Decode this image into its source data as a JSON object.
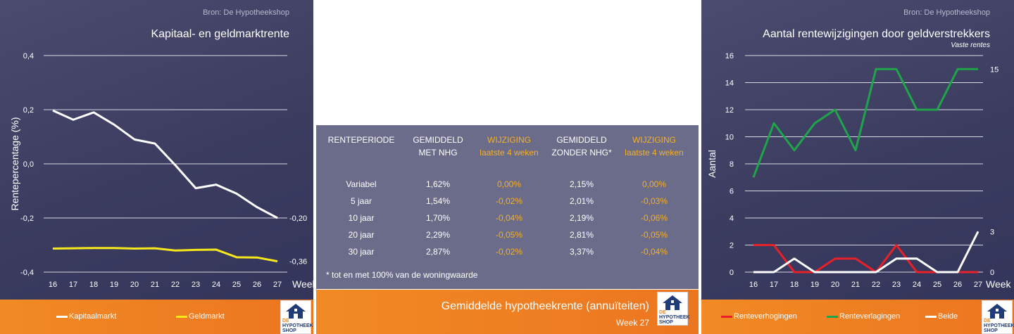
{
  "left_panel": {
    "source": "Bron: De Hypotheekshop",
    "legend": [
      {
        "label": "Kapitaalmarkt",
        "color": "#ffffff"
      },
      {
        "label": "Geldmarkt",
        "color": "#f7e81c"
      }
    ],
    "end_labels": [
      "-0,20",
      "-0,36"
    ]
  },
  "middle_panel": {
    "headers": [
      {
        "line1": "RENTEPERIODE",
        "line2": "",
        "accent": false
      },
      {
        "line1": "GEMIDDELD",
        "line2": "MET NHG",
        "accent": false
      },
      {
        "line1": "WIJZIGING",
        "line2": "laatste 4 weken",
        "accent": true
      },
      {
        "line1": "GEMIDDELD",
        "line2": "ZONDER NHG*",
        "accent": false
      },
      {
        "line1": "WIJZIGING",
        "line2": "laatste 4 weken",
        "accent": true
      }
    ],
    "rows": [
      [
        "Variabel",
        "1,62%",
        "0,00%",
        "2,15%",
        "0,00%"
      ],
      [
        "5 jaar",
        "1,54%",
        "-0,02%",
        "2,01%",
        "-0,03%"
      ],
      [
        "10 jaar",
        "1,70%",
        "-0,04%",
        "2,19%",
        "-0,06%"
      ],
      [
        "20 jaar",
        "2,29%",
        "-0,05%",
        "2,81%",
        "-0,05%"
      ],
      [
        "30 jaar",
        "2,87%",
        "-0,02%",
        "3,37%",
        "-0,04%"
      ]
    ],
    "note": "* tot en met 100% van de woningwaarde",
    "footer_title": "Gemiddelde hypotheekrente (annuïteiten)",
    "footer_week": "Week 27",
    "accent_color": "#f6b022"
  },
  "right_panel": {
    "source": "Bron: De Hypotheekshop",
    "subtitle": "Vaste rentes",
    "legend": [
      {
        "label": "Renteverhogingen",
        "color": "#e8202a"
      },
      {
        "label": "Renteverlagingen",
        "color": "#20a44a"
      },
      {
        "label": "Beide",
        "color": "#ffffff"
      }
    ]
  },
  "logo": {
    "line1": "DE",
    "line2": "HYPOTHEEK",
    "line3": "SHOP"
  },
  "chart_data": [
    {
      "type": "line",
      "title": "Kapitaal- en geldmarktrente",
      "xlabel": "Week",
      "ylabel": "Rentepercentage (%)",
      "x": [
        16,
        17,
        18,
        19,
        20,
        21,
        22,
        23,
        24,
        25,
        26,
        27
      ],
      "ylim": [
        -0.4,
        0.4
      ],
      "yticks": [
        "0,4",
        "0,2",
        "0,0",
        "-0,2",
        "-0,4"
      ],
      "ytick_values": [
        0.4,
        0.2,
        0.0,
        -0.2,
        -0.4
      ],
      "grid": true,
      "series": [
        {
          "name": "Kapitaalmarkt",
          "color": "#ffffff",
          "values": [
            0.197,
            0.163,
            0.19,
            0.145,
            0.09,
            0.075,
            -0.005,
            -0.09,
            -0.077,
            -0.11,
            -0.16,
            -0.2
          ]
        },
        {
          "name": "Geldmarkt",
          "color": "#f7e81c",
          "values": [
            -0.313,
            -0.312,
            -0.311,
            -0.311,
            -0.313,
            -0.312,
            -0.32,
            -0.318,
            -0.317,
            -0.345,
            -0.346,
            -0.36
          ]
        }
      ]
    },
    {
      "type": "line",
      "title": "Aantal rentewijzigingen door geldverstrekkers",
      "subtitle": "Vaste rentes",
      "xlabel": "Week",
      "ylabel": "Aantal",
      "x": [
        16,
        17,
        18,
        19,
        20,
        21,
        22,
        23,
        24,
        25,
        26,
        27
      ],
      "ylim": [
        0,
        16
      ],
      "yticks": [
        "16",
        "14",
        "12",
        "10",
        "8",
        "6",
        "4",
        "2",
        "0"
      ],
      "ytick_values": [
        16,
        14,
        12,
        10,
        8,
        6,
        4,
        2,
        0
      ],
      "y2ticks": [
        "15",
        "3",
        "0"
      ],
      "y2tick_values": [
        15,
        3,
        0
      ],
      "grid": true,
      "series": [
        {
          "name": "Renteverhogingen",
          "color": "#e8202a",
          "values": [
            2,
            2,
            0,
            0,
            1,
            1,
            0,
            2,
            0,
            0,
            0,
            0
          ]
        },
        {
          "name": "Renteverlagingen",
          "color": "#20a44a",
          "values": [
            7,
            11,
            9,
            11,
            12,
            9,
            15,
            15,
            12,
            12,
            15,
            15
          ]
        },
        {
          "name": "Beide",
          "color": "#ffffff",
          "values": [
            0,
            0,
            1,
            0,
            0,
            0,
            0,
            1,
            1,
            0,
            0,
            3
          ]
        }
      ]
    }
  ]
}
